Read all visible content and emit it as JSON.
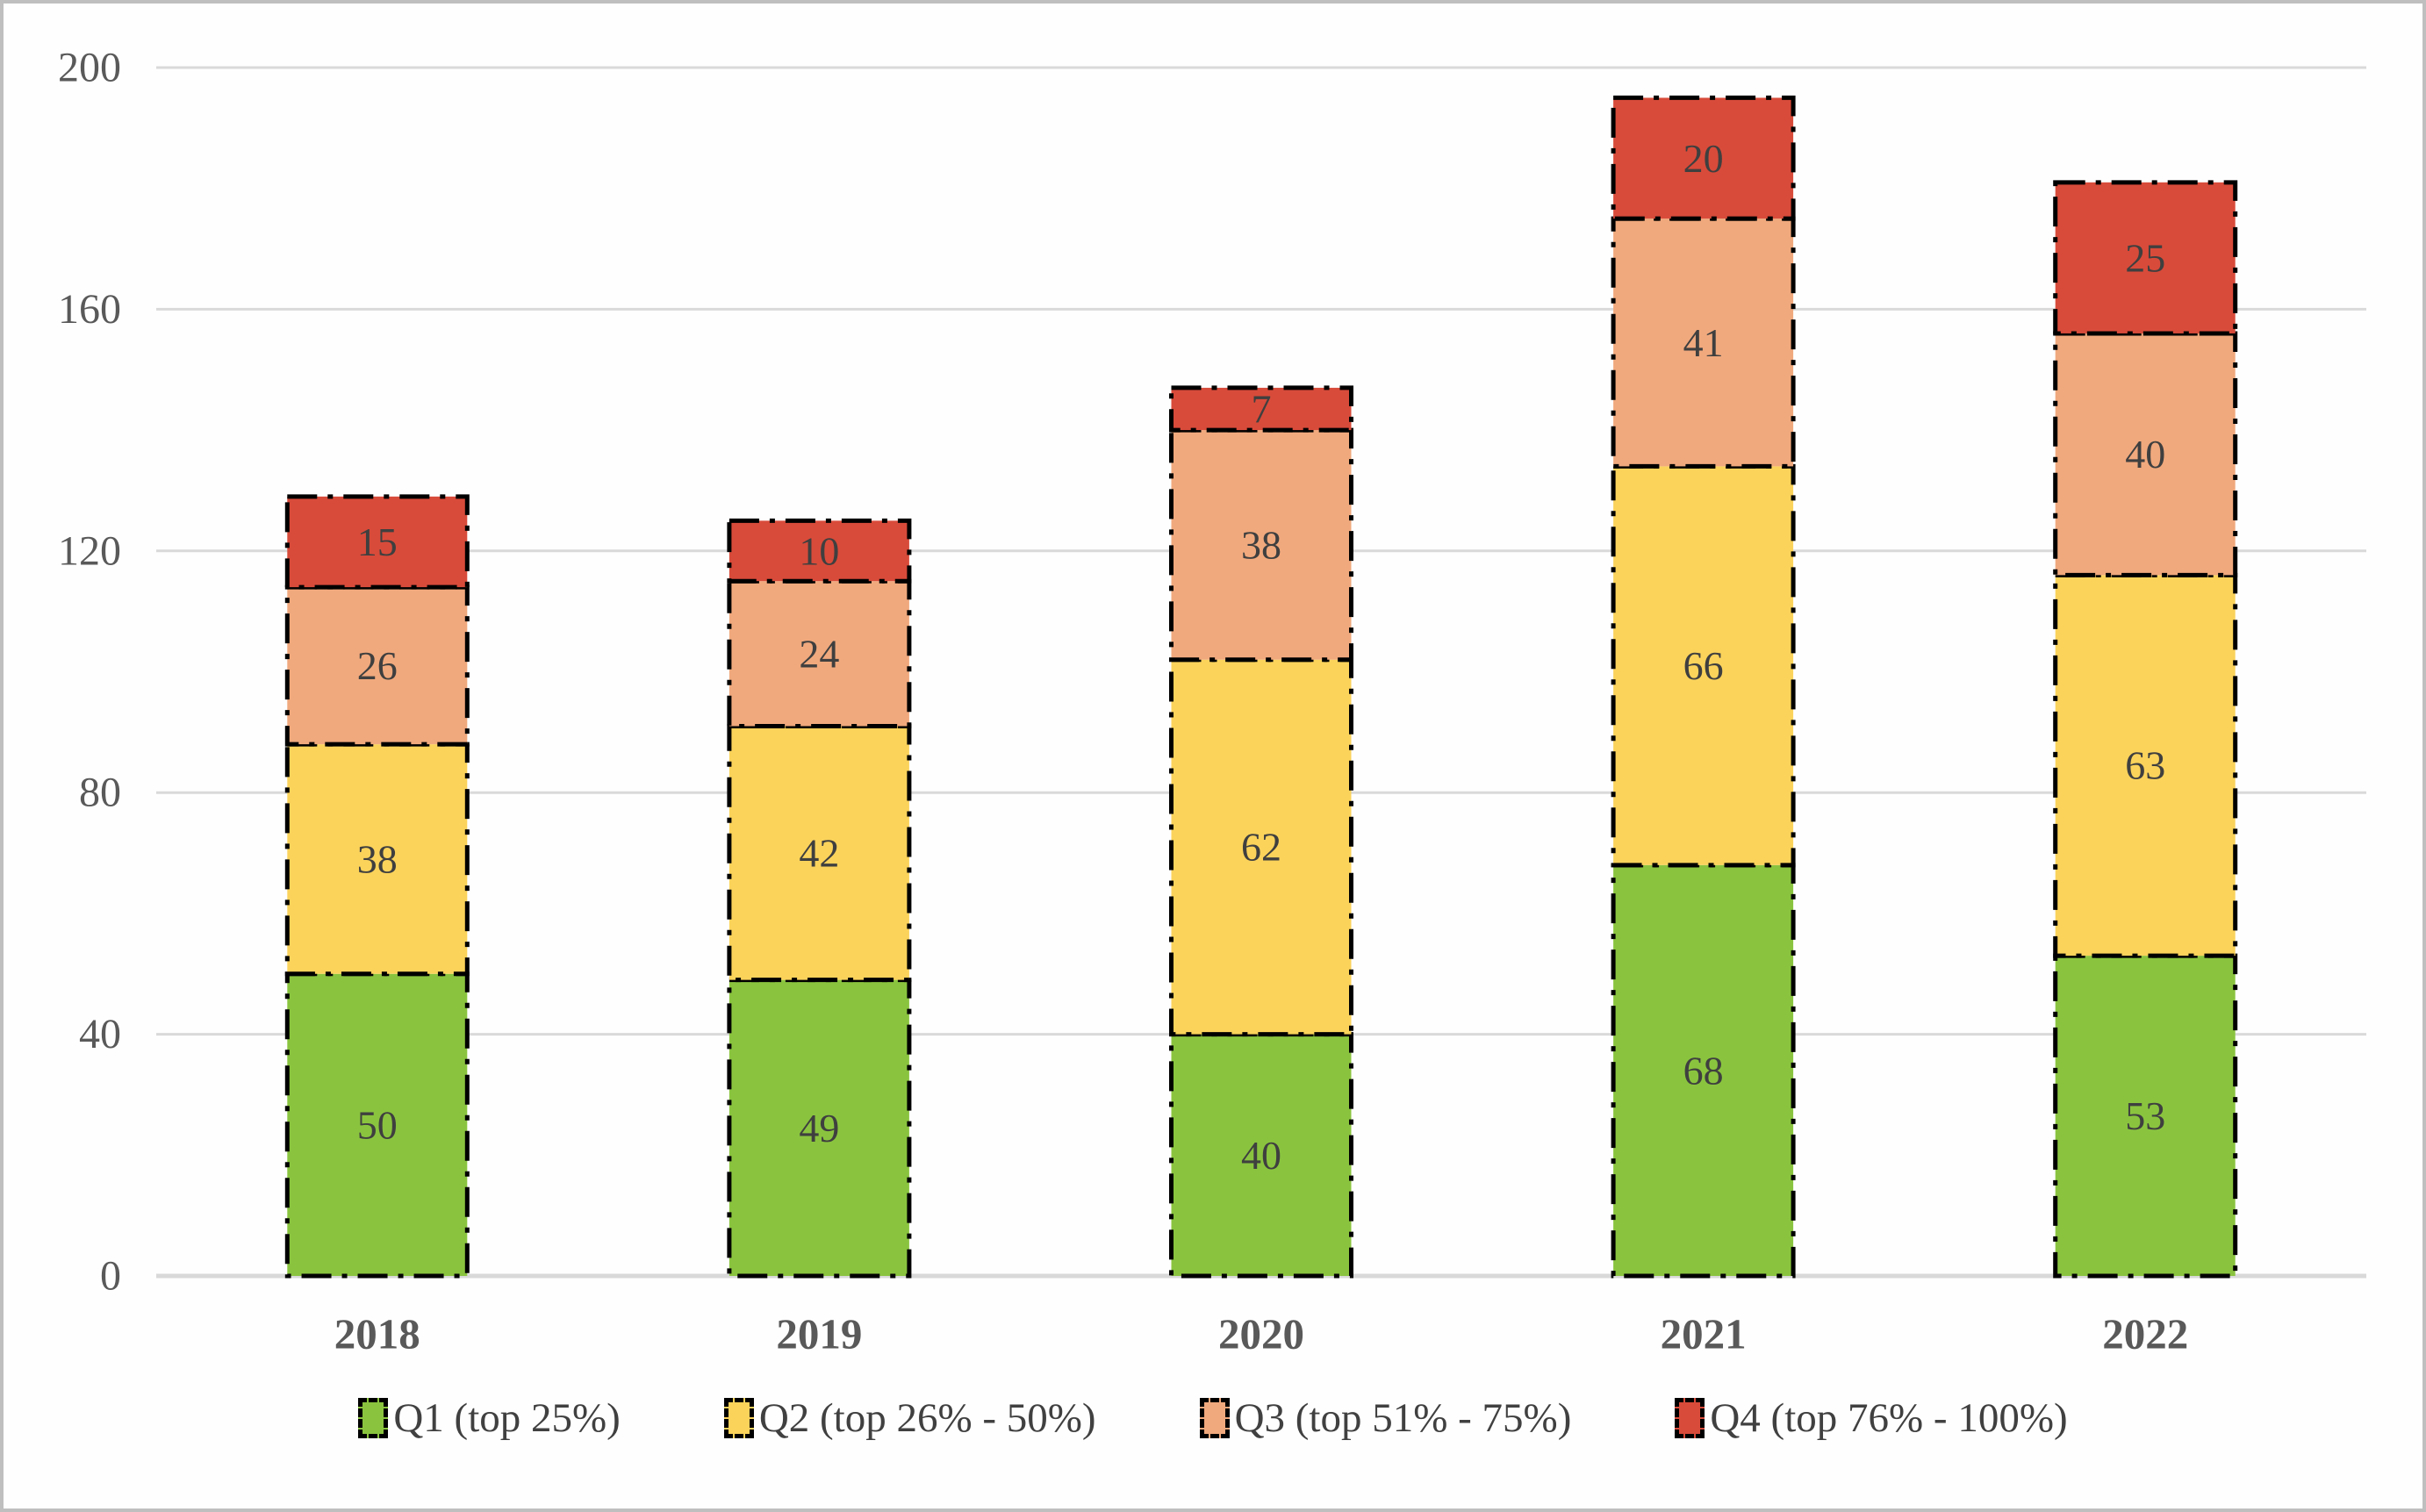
{
  "figure": {
    "background": "#FEFEFE",
    "border_color": "#BFBFBF"
  },
  "chart_data": {
    "type": "bar",
    "stacked": true,
    "title": "",
    "xlabel": "",
    "ylabel": "",
    "categories": [
      "2018",
      "2019",
      "2020",
      "2021",
      "2022"
    ],
    "series": [
      {
        "name": "Q1 (top 25%)",
        "color": "#8AC43F",
        "values": [
          50,
          49,
          40,
          68,
          53
        ]
      },
      {
        "name": "Q2 (top 26% - 50%)",
        "color": "#FBD35B",
        "values": [
          38,
          42,
          62,
          66,
          63
        ]
      },
      {
        "name": "Q3 (top 51% - 75%)",
        "color": "#F0A97D",
        "values": [
          26,
          24,
          38,
          41,
          40
        ]
      },
      {
        "name": "Q4 (top 76% - 100%)",
        "color": "#D84B3A",
        "values": [
          15,
          10,
          7,
          20,
          25
        ]
      }
    ],
    "totals": [
      129,
      125,
      147,
      195,
      181
    ],
    "ylim": [
      0,
      200
    ],
    "yticks": [
      0,
      40,
      80,
      120,
      160,
      200
    ],
    "grid": true,
    "gridline_color": "#D9D9D9",
    "axis_tick_color": "#595959",
    "data_label_color": "#3F3F3F",
    "bar_border": {
      "color": "#000000",
      "style": "dash-dot",
      "width": 5
    },
    "legend_position": "bottom"
  }
}
